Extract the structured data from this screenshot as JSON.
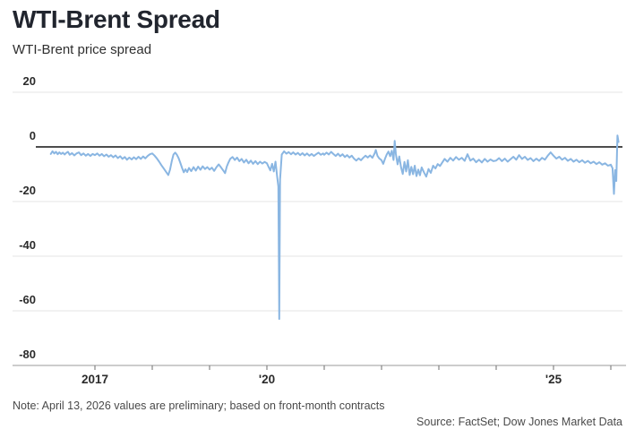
{
  "header": {
    "title": "WTI-Brent Spread",
    "subtitle": "WTI-Brent price spread"
  },
  "footer": {
    "note": "Note: April 13, 2026 values are preliminary; based on front-month contracts",
    "source": "Source: FactSet; Dow Jones Market Data"
  },
  "colors": {
    "line": "#8ab6e2",
    "grid": "#e4e4e4",
    "zero_line": "#121212",
    "axis": "#9b9b9b",
    "tick": "#6e6e6e",
    "title_text": "#21252e",
    "label_text": "#2b2b2b",
    "footnote_text": "#4a4a4a"
  },
  "chart_data": {
    "type": "line",
    "title": "WTI-Brent Spread",
    "subtitle": "WTI-Brent price spread",
    "series_name": "WTI-Brent price spread (dollars per barrel)",
    "x_unit": "decimal year",
    "x_range": [
      2016.2,
      2026.16
    ],
    "ylim": [
      -80,
      20
    ],
    "grid": "horizontal",
    "legend": "none",
    "yticks": [
      20,
      0,
      -20,
      -40,
      -60,
      -80
    ],
    "xticks": [
      2017,
      2018,
      2019,
      2020,
      2021,
      2022,
      2023,
      2024,
      2025,
      2026
    ],
    "xtick_labels": [
      {
        "year": 2017,
        "label": "2017"
      },
      {
        "year": 2020,
        "label": "'20"
      },
      {
        "year": 2025,
        "label": "'25"
      }
    ],
    "annotations": [
      {
        "x": 2020.215,
        "y": -63,
        "meaning": "April 2020 WTI collapse, spread ~ -63"
      },
      {
        "x": 2026.055,
        "y": -17.2,
        "meaning": "early April 2026 dip"
      },
      {
        "x": 2026.115,
        "y": 4.2,
        "meaning": "April 13, 2026 preliminary spike above zero"
      }
    ],
    "points": [
      [
        2016.23,
        -2.6
      ],
      [
        2016.26,
        -1.6
      ],
      [
        2016.29,
        -2.4
      ],
      [
        2016.32,
        -1.8
      ],
      [
        2016.35,
        -2.7
      ],
      [
        2016.38,
        -2.0
      ],
      [
        2016.41,
        -2.6
      ],
      [
        2016.44,
        -2.1
      ],
      [
        2016.47,
        -2.8
      ],
      [
        2016.5,
        -2.2
      ],
      [
        2016.53,
        -1.8
      ],
      [
        2016.56,
        -2.9
      ],
      [
        2016.6,
        -2.3
      ],
      [
        2016.64,
        -3.1
      ],
      [
        2016.68,
        -2.4
      ],
      [
        2016.72,
        -2.0
      ],
      [
        2016.76,
        -3.0
      ],
      [
        2016.8,
        -2.4
      ],
      [
        2016.84,
        -3.2
      ],
      [
        2016.88,
        -2.6
      ],
      [
        2016.92,
        -3.3
      ],
      [
        2016.96,
        -2.6
      ],
      [
        2017.0,
        -3.0
      ],
      [
        2017.04,
        -2.4
      ],
      [
        2017.08,
        -3.2
      ],
      [
        2017.12,
        -2.6
      ],
      [
        2017.16,
        -3.4
      ],
      [
        2017.2,
        -2.8
      ],
      [
        2017.24,
        -3.6
      ],
      [
        2017.28,
        -3.0
      ],
      [
        2017.32,
        -3.8
      ],
      [
        2017.36,
        -3.1
      ],
      [
        2017.4,
        -4.1
      ],
      [
        2017.44,
        -3.4
      ],
      [
        2017.48,
        -4.4
      ],
      [
        2017.52,
        -3.7
      ],
      [
        2017.56,
        -4.7
      ],
      [
        2017.6,
        -3.9
      ],
      [
        2017.64,
        -4.6
      ],
      [
        2017.68,
        -3.8
      ],
      [
        2017.72,
        -4.5
      ],
      [
        2017.76,
        -3.6
      ],
      [
        2017.8,
        -4.4
      ],
      [
        2017.84,
        -3.5
      ],
      [
        2017.88,
        -4.2
      ],
      [
        2017.92,
        -3.3
      ],
      [
        2017.96,
        -2.7
      ],
      [
        2018.0,
        -2.4
      ],
      [
        2018.04,
        -3.2
      ],
      [
        2018.08,
        -4.2
      ],
      [
        2018.12,
        -5.4
      ],
      [
        2018.16,
        -6.7
      ],
      [
        2018.2,
        -7.9
      ],
      [
        2018.24,
        -9.1
      ],
      [
        2018.28,
        -10.3
      ],
      [
        2018.31,
        -8.4
      ],
      [
        2018.34,
        -5.2
      ],
      [
        2018.37,
        -2.8
      ],
      [
        2018.4,
        -2.1
      ],
      [
        2018.43,
        -2.9
      ],
      [
        2018.46,
        -4.1
      ],
      [
        2018.49,
        -5.9
      ],
      [
        2018.52,
        -7.7
      ],
      [
        2018.55,
        -9.3
      ],
      [
        2018.58,
        -8.2
      ],
      [
        2018.61,
        -9.2
      ],
      [
        2018.64,
        -7.7
      ],
      [
        2018.68,
        -8.9
      ],
      [
        2018.72,
        -7.4
      ],
      [
        2018.76,
        -8.7
      ],
      [
        2018.8,
        -7.2
      ],
      [
        2018.84,
        -8.4
      ],
      [
        2018.88,
        -7.1
      ],
      [
        2018.92,
        -8.1
      ],
      [
        2018.96,
        -7.4
      ],
      [
        2019.0,
        -8.3
      ],
      [
        2019.04,
        -7.6
      ],
      [
        2019.08,
        -8.8
      ],
      [
        2019.12,
        -7.4
      ],
      [
        2019.16,
        -6.4
      ],
      [
        2019.2,
        -7.5
      ],
      [
        2019.24,
        -8.7
      ],
      [
        2019.27,
        -9.6
      ],
      [
        2019.3,
        -7.2
      ],
      [
        2019.33,
        -5.7
      ],
      [
        2019.36,
        -4.4
      ],
      [
        2019.4,
        -3.7
      ],
      [
        2019.44,
        -4.8
      ],
      [
        2019.48,
        -3.9
      ],
      [
        2019.52,
        -5.2
      ],
      [
        2019.56,
        -4.4
      ],
      [
        2019.6,
        -5.7
      ],
      [
        2019.64,
        -4.7
      ],
      [
        2019.68,
        -6.0
      ],
      [
        2019.72,
        -5.0
      ],
      [
        2019.76,
        -6.2
      ],
      [
        2019.8,
        -5.2
      ],
      [
        2019.84,
        -6.3
      ],
      [
        2019.88,
        -5.4
      ],
      [
        2019.92,
        -6.1
      ],
      [
        2019.96,
        -5.5
      ],
      [
        2020.0,
        -6.0
      ],
      [
        2020.03,
        -7.3
      ],
      [
        2020.06,
        -8.6
      ],
      [
        2020.09,
        -6.2
      ],
      [
        2020.12,
        -9.0
      ],
      [
        2020.15,
        -5.4
      ],
      [
        2020.18,
        -11.0
      ],
      [
        2020.2,
        -14.5
      ],
      [
        2020.215,
        -63.0
      ],
      [
        2020.23,
        -12.0
      ],
      [
        2020.26,
        -2.8
      ],
      [
        2020.3,
        -1.6
      ],
      [
        2020.34,
        -2.5
      ],
      [
        2020.38,
        -1.9
      ],
      [
        2020.42,
        -2.7
      ],
      [
        2020.46,
        -2.0
      ],
      [
        2020.5,
        -2.8
      ],
      [
        2020.54,
        -2.2
      ],
      [
        2020.58,
        -3.0
      ],
      [
        2020.62,
        -2.3
      ],
      [
        2020.66,
        -3.1
      ],
      [
        2020.7,
        -2.4
      ],
      [
        2020.74,
        -3.2
      ],
      [
        2020.78,
        -2.6
      ],
      [
        2020.82,
        -3.3
      ],
      [
        2020.86,
        -2.7
      ],
      [
        2020.9,
        -2.1
      ],
      [
        2020.94,
        -2.9
      ],
      [
        2020.98,
        -2.4
      ],
      [
        2021.0,
        -2.9
      ],
      [
        2021.04,
        -2.1
      ],
      [
        2021.08,
        -2.8
      ],
      [
        2021.12,
        -1.8
      ],
      [
        2021.16,
        -2.6
      ],
      [
        2021.2,
        -3.3
      ],
      [
        2021.24,
        -2.5
      ],
      [
        2021.28,
        -3.4
      ],
      [
        2021.32,
        -2.7
      ],
      [
        2021.36,
        -3.7
      ],
      [
        2021.4,
        -3.0
      ],
      [
        2021.44,
        -3.9
      ],
      [
        2021.48,
        -3.2
      ],
      [
        2021.52,
        -4.3
      ],
      [
        2021.56,
        -5.0
      ],
      [
        2021.6,
        -4.2
      ],
      [
        2021.64,
        -4.9
      ],
      [
        2021.68,
        -4.0
      ],
      [
        2021.72,
        -3.2
      ],
      [
        2021.76,
        -3.9
      ],
      [
        2021.8,
        -3.1
      ],
      [
        2021.84,
        -4.0
      ],
      [
        2021.88,
        -2.4
      ],
      [
        2021.9,
        -1.1
      ],
      [
        2021.93,
        -3.3
      ],
      [
        2021.96,
        -4.2
      ],
      [
        2022.0,
        -4.9
      ],
      [
        2022.03,
        -6.2
      ],
      [
        2022.06,
        -4.4
      ],
      [
        2022.09,
        -2.8
      ],
      [
        2022.12,
        -1.7
      ],
      [
        2022.15,
        -3.4
      ],
      [
        2022.18,
        -1.4
      ],
      [
        2022.21,
        -4.8
      ],
      [
        2022.23,
        2.2
      ],
      [
        2022.25,
        -2.6
      ],
      [
        2022.28,
        -6.4
      ],
      [
        2022.31,
        -3.5
      ],
      [
        2022.34,
        -7.5
      ],
      [
        2022.37,
        -9.9
      ],
      [
        2022.4,
        -5.5
      ],
      [
        2022.43,
        -9.0
      ],
      [
        2022.46,
        -4.9
      ],
      [
        2022.49,
        -10.3
      ],
      [
        2022.52,
        -7.3
      ],
      [
        2022.55,
        -10.0
      ],
      [
        2022.58,
        -6.9
      ],
      [
        2022.61,
        -10.7
      ],
      [
        2022.64,
        -8.3
      ],
      [
        2022.67,
        -10.4
      ],
      [
        2022.7,
        -7.5
      ],
      [
        2022.74,
        -9.3
      ],
      [
        2022.78,
        -10.9
      ],
      [
        2022.82,
        -8.1
      ],
      [
        2022.86,
        -9.5
      ],
      [
        2022.9,
        -6.9
      ],
      [
        2022.94,
        -7.9
      ],
      [
        2022.98,
        -6.3
      ],
      [
        2023.02,
        -7.0
      ],
      [
        2023.06,
        -5.7
      ],
      [
        2023.1,
        -4.4
      ],
      [
        2023.15,
        -5.4
      ],
      [
        2023.2,
        -4.0
      ],
      [
        2023.25,
        -5.0
      ],
      [
        2023.3,
        -3.7
      ],
      [
        2023.35,
        -4.7
      ],
      [
        2023.4,
        -4.0
      ],
      [
        2023.45,
        -5.1
      ],
      [
        2023.5,
        -2.7
      ],
      [
        2023.55,
        -5.0
      ],
      [
        2023.6,
        -4.3
      ],
      [
        2023.65,
        -5.6
      ],
      [
        2023.7,
        -4.7
      ],
      [
        2023.75,
        -5.7
      ],
      [
        2023.8,
        -4.4
      ],
      [
        2023.85,
        -5.4
      ],
      [
        2023.9,
        -4.6
      ],
      [
        2023.95,
        -5.2
      ],
      [
        2024.0,
        -5.0
      ],
      [
        2024.05,
        -4.1
      ],
      [
        2024.1,
        -5.2
      ],
      [
        2024.15,
        -4.3
      ],
      [
        2024.2,
        -5.4
      ],
      [
        2024.25,
        -4.5
      ],
      [
        2024.3,
        -3.6
      ],
      [
        2024.35,
        -4.7
      ],
      [
        2024.4,
        -3.0
      ],
      [
        2024.45,
        -4.4
      ],
      [
        2024.5,
        -3.6
      ],
      [
        2024.55,
        -4.8
      ],
      [
        2024.6,
        -4.1
      ],
      [
        2024.65,
        -5.2
      ],
      [
        2024.7,
        -4.3
      ],
      [
        2024.75,
        -5.1
      ],
      [
        2024.8,
        -4.0
      ],
      [
        2024.85,
        -4.7
      ],
      [
        2024.9,
        -3.2
      ],
      [
        2024.95,
        -2.0
      ],
      [
        2025.0,
        -3.2
      ],
      [
        2025.05,
        -4.3
      ],
      [
        2025.1,
        -3.6
      ],
      [
        2025.15,
        -4.7
      ],
      [
        2025.2,
        -4.0
      ],
      [
        2025.25,
        -5.1
      ],
      [
        2025.3,
        -4.4
      ],
      [
        2025.35,
        -5.4
      ],
      [
        2025.4,
        -4.7
      ],
      [
        2025.45,
        -5.6
      ],
      [
        2025.5,
        -4.9
      ],
      [
        2025.55,
        -5.8
      ],
      [
        2025.6,
        -5.1
      ],
      [
        2025.65,
        -6.0
      ],
      [
        2025.7,
        -5.4
      ],
      [
        2025.75,
        -6.3
      ],
      [
        2025.8,
        -5.6
      ],
      [
        2025.85,
        -6.5
      ],
      [
        2025.9,
        -6.0
      ],
      [
        2025.95,
        -6.9
      ],
      [
        2026.0,
        -6.5
      ],
      [
        2026.03,
        -7.8
      ],
      [
        2026.055,
        -17.2
      ],
      [
        2026.075,
        -8.5
      ],
      [
        2026.095,
        -12.5
      ],
      [
        2026.115,
        4.2
      ],
      [
        2026.135,
        1.8
      ]
    ]
  }
}
